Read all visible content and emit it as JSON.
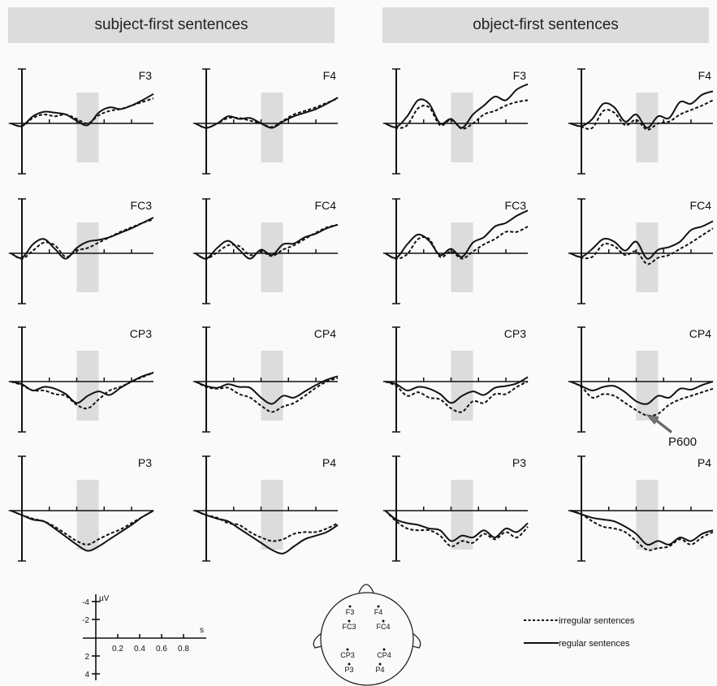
{
  "headers": {
    "left": "subject-first sentences",
    "right": "object-first sentences"
  },
  "colors": {
    "highlight_band": "#dcdcdc",
    "trace": "#111111",
    "header_bg": "#dcdcdc"
  },
  "legend": {
    "irregular": "irregular sentences",
    "regular": "regular sentences"
  },
  "scale": {
    "y_unit": "µV",
    "x_unit": "s",
    "y_ticks": [
      "-4",
      "-2",
      "2",
      "4"
    ],
    "x_ticks": [
      "0.2",
      "0.4",
      "0.6",
      "0.8"
    ]
  },
  "annotation": {
    "label": "P600",
    "panel": "object-first CP4"
  },
  "head_map": {
    "electrodes": [
      "F3",
      "F4",
      "FC3",
      "FC4",
      "CP3",
      "CP4",
      "P3",
      "P4"
    ]
  },
  "chart_data": {
    "type": "line",
    "xlabel": "s",
    "ylabel": "µV",
    "negative_up": true,
    "xlim": [
      -0.1,
      1.2
    ],
    "ylim": [
      -4,
      4
    ],
    "highlight_window": [
      0.5,
      0.7
    ],
    "times": [
      -0.1,
      0.0,
      0.1,
      0.2,
      0.3,
      0.4,
      0.5,
      0.6,
      0.7,
      0.8,
      0.9,
      1.0,
      1.1,
      1.2
    ],
    "panels": [
      {
        "group": "subject-first sentences",
        "electrode": "F3",
        "regular": [
          0,
          0.3,
          -0.8,
          -1.3,
          -1.2,
          -1.0,
          -0.3,
          0.2,
          -1.2,
          -1.8,
          -1.6,
          -2.0,
          -2.6,
          -3.3
        ],
        "irregular": [
          0,
          0.3,
          -0.6,
          -1.0,
          -0.8,
          -1.0,
          -0.5,
          0.0,
          -0.9,
          -1.4,
          -1.6,
          -2.0,
          -2.4,
          -2.8
        ]
      },
      {
        "group": "subject-first sentences",
        "electrode": "F4",
        "regular": [
          0,
          0.5,
          0.0,
          -0.8,
          -0.5,
          -0.6,
          0.0,
          0.5,
          -0.2,
          -0.8,
          -1.2,
          -1.6,
          -2.2,
          -2.9
        ],
        "irregular": [
          0,
          0.5,
          0.0,
          -0.6,
          -0.6,
          -0.3,
          0.0,
          0.4,
          -0.3,
          -1.0,
          -1.4,
          -1.8,
          -2.3,
          -2.8
        ]
      },
      {
        "group": "object-first sentences",
        "electrode": "F3",
        "regular": [
          0,
          0.4,
          -0.8,
          -2.6,
          -2.2,
          0.0,
          -0.5,
          0.5,
          -1.0,
          -2.0,
          -3.0,
          -2.6,
          -3.8,
          -4.4
        ],
        "irregular": [
          0,
          0.5,
          0.2,
          -1.7,
          -1.8,
          0.2,
          -0.4,
          0.6,
          0.0,
          -1.0,
          -1.4,
          -2.0,
          -2.4,
          -2.6
        ]
      },
      {
        "group": "object-first sentences",
        "electrode": "F4",
        "regular": [
          0,
          0.3,
          -0.5,
          -2.2,
          -1.8,
          -0.2,
          -1.0,
          0.5,
          -0.8,
          -0.6,
          -2.4,
          -2.2,
          -3.2,
          -3.6
        ],
        "irregular": [
          0,
          0.4,
          0.5,
          -1.4,
          -1.2,
          0.2,
          -0.4,
          0.7,
          0.0,
          -0.2,
          -1.0,
          -1.5,
          -2.0,
          -2.6
        ]
      },
      {
        "group": "subject-first sentences",
        "electrode": "FC3",
        "regular": [
          0,
          0.5,
          -1.0,
          -1.6,
          -0.5,
          0.6,
          -0.6,
          -1.3,
          -1.5,
          -1.8,
          -2.3,
          -2.8,
          -3.4,
          -4.0
        ],
        "irregular": [
          0,
          0.6,
          -0.3,
          -1.2,
          -0.9,
          0.4,
          -0.3,
          -0.6,
          -1.2,
          -1.8,
          -2.4,
          -2.9,
          -3.4,
          -3.8
        ]
      },
      {
        "group": "subject-first sentences",
        "electrode": "FC4",
        "regular": [
          0,
          0.6,
          -0.6,
          -1.4,
          -0.4,
          0.6,
          -0.4,
          0.2,
          -1.0,
          -1.1,
          -1.8,
          -2.2,
          -2.8,
          -3.2
        ],
        "irregular": [
          0,
          0.6,
          -0.1,
          -0.9,
          -0.8,
          0.2,
          -0.2,
          0.3,
          -0.4,
          -0.9,
          -1.6,
          -2.3,
          -2.9,
          -3.2
        ]
      },
      {
        "group": "object-first sentences",
        "electrode": "FC3",
        "regular": [
          0,
          0.5,
          -1.0,
          -2.1,
          -1.4,
          0.2,
          -0.5,
          0.4,
          -1.2,
          -1.8,
          -3.0,
          -3.4,
          -4.2,
          -4.8
        ],
        "irregular": [
          0,
          0.6,
          0.1,
          -1.6,
          -1.6,
          0.4,
          -0.2,
          0.6,
          -0.2,
          -1.0,
          -1.6,
          -2.4,
          -2.4,
          -3.0
        ]
      },
      {
        "group": "object-first sentences",
        "electrode": "FC4",
        "regular": [
          0,
          0.4,
          -0.5,
          -1.6,
          -1.3,
          -0.3,
          -1.3,
          0.6,
          -0.4,
          -0.7,
          -1.3,
          -2.6,
          -3.0,
          -3.6
        ],
        "irregular": [
          0,
          0.5,
          0.4,
          -1.0,
          -0.8,
          0.2,
          -0.2,
          1.2,
          0.5,
          0.2,
          -0.5,
          -1.2,
          -2.0,
          -2.8
        ]
      },
      {
        "group": "subject-first sentences",
        "electrode": "CP3",
        "regular": [
          0,
          0.3,
          1.0,
          0.6,
          0.8,
          1.4,
          2.4,
          1.6,
          1.1,
          1.5,
          0.7,
          0.0,
          -0.6,
          -1.0
        ],
        "irregular": [
          0,
          0.4,
          1.0,
          1.0,
          1.4,
          1.6,
          2.6,
          3.0,
          2.0,
          1.0,
          0.6,
          0.0,
          -0.5,
          -1.0
        ]
      },
      {
        "group": "subject-first sentences",
        "electrode": "CP4",
        "regular": [
          0,
          0.5,
          0.7,
          0.3,
          0.6,
          0.7,
          1.8,
          2.5,
          1.6,
          1.8,
          1.1,
          0.4,
          -0.2,
          -0.6
        ],
        "irregular": [
          0,
          0.6,
          0.8,
          0.7,
          1.4,
          1.8,
          2.7,
          3.4,
          2.8,
          2.4,
          1.6,
          0.7,
          0.0,
          -0.4
        ]
      },
      {
        "group": "object-first sentences",
        "electrode": "CP3",
        "regular": [
          0,
          0.3,
          1.0,
          0.6,
          0.8,
          1.4,
          2.4,
          1.6,
          1.1,
          1.5,
          0.7,
          0.5,
          0.2,
          -0.5
        ],
        "irregular": [
          0,
          0.5,
          1.6,
          1.2,
          1.8,
          2.0,
          3.0,
          3.4,
          2.2,
          2.4,
          1.4,
          1.4,
          0.6,
          0.0
        ]
      },
      {
        "group": "object-first sentences",
        "electrode": "CP4",
        "regular": [
          0,
          0.5,
          1.0,
          0.6,
          0.5,
          1.2,
          2.2,
          2.5,
          1.6,
          1.8,
          0.8,
          0.9,
          0.4,
          0.0
        ],
        "irregular": [
          0,
          0.6,
          1.8,
          1.4,
          1.6,
          2.4,
          3.2,
          3.8,
          3.6,
          2.6,
          2.0,
          1.6,
          1.2,
          0.8
        ]
      },
      {
        "group": "subject-first sentences",
        "electrode": "P3",
        "regular": [
          0,
          0.5,
          1.0,
          1.2,
          2.0,
          2.9,
          3.8,
          4.5,
          4.0,
          3.2,
          2.4,
          1.6,
          0.7,
          0.0
        ],
        "irregular": [
          0,
          0.5,
          0.9,
          1.2,
          1.8,
          2.6,
          3.4,
          3.8,
          3.2,
          2.6,
          2.1,
          1.4,
          0.7,
          0.0
        ]
      },
      {
        "group": "subject-first sentences",
        "electrode": "P4",
        "regular": [
          0,
          0.5,
          0.9,
          1.2,
          2.0,
          2.8,
          3.6,
          4.4,
          4.8,
          4.0,
          3.2,
          2.8,
          2.4,
          1.6
        ],
        "irregular": [
          0,
          0.5,
          0.8,
          1.4,
          1.6,
          2.4,
          3.0,
          3.4,
          3.2,
          2.6,
          2.4,
          2.4,
          2.0,
          1.4
        ]
      },
      {
        "group": "object-first sentences",
        "electrode": "P3",
        "regular": [
          0,
          1.0,
          1.4,
          1.6,
          2.0,
          2.2,
          3.4,
          2.8,
          3.0,
          2.2,
          3.0,
          2.0,
          2.4,
          1.4
        ],
        "irregular": [
          0,
          1.2,
          2.0,
          2.2,
          2.2,
          2.8,
          4.0,
          3.4,
          3.6,
          2.6,
          3.2,
          2.4,
          3.0,
          1.8
        ]
      },
      {
        "group": "object-first sentences",
        "electrode": "P4",
        "regular": [
          0,
          0.4,
          0.8,
          1.0,
          1.2,
          1.8,
          2.6,
          3.8,
          3.4,
          3.8,
          3.0,
          3.4,
          2.6,
          2.2
        ],
        "irregular": [
          0,
          0.4,
          1.2,
          1.8,
          2.0,
          2.4,
          3.4,
          4.4,
          4.2,
          4.0,
          3.2,
          3.8,
          3.0,
          2.4
        ]
      }
    ]
  }
}
